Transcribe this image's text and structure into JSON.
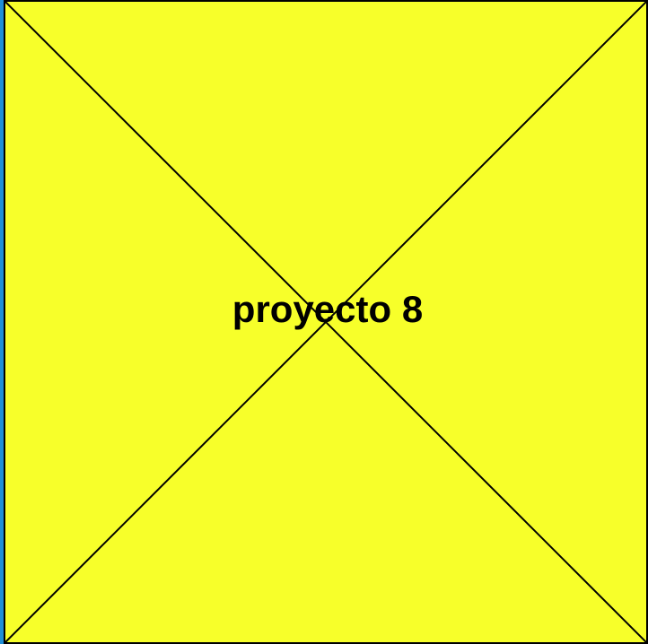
{
  "placeholder": {
    "label": "proyecto 8",
    "fill_color": "#f7ff2a",
    "line_color": "#000000",
    "edge_color": "#1f8fd6"
  }
}
